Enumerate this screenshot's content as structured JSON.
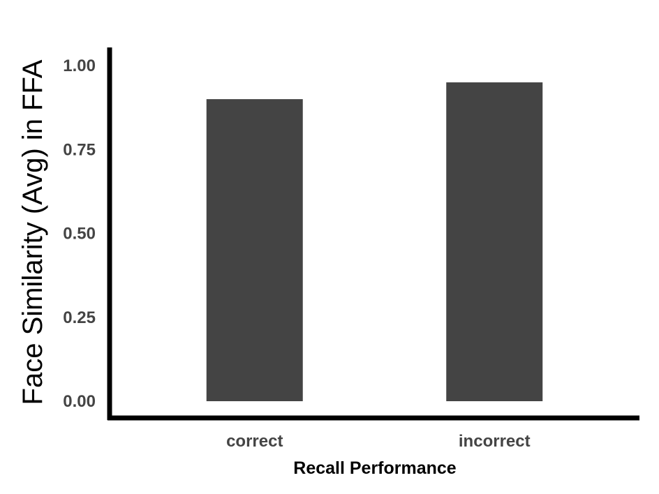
{
  "chart_data": {
    "type": "bar",
    "categories": [
      "correct",
      "incorrect"
    ],
    "values": [
      0.9,
      0.95
    ],
    "xlabel": "Recall Performance",
    "ylabel": "Face Similarity (Avg) in FFA",
    "ylim": [
      0,
      1.05
    ],
    "yticks": [
      0,
      0.25,
      0.5,
      0.75,
      1.0
    ],
    "ytick_labels": [
      "0.00",
      "0.25",
      "0.50",
      "0.75",
      "1.00"
    ],
    "grid": false,
    "bar_color": "#444444",
    "axis_color": "#000000"
  }
}
